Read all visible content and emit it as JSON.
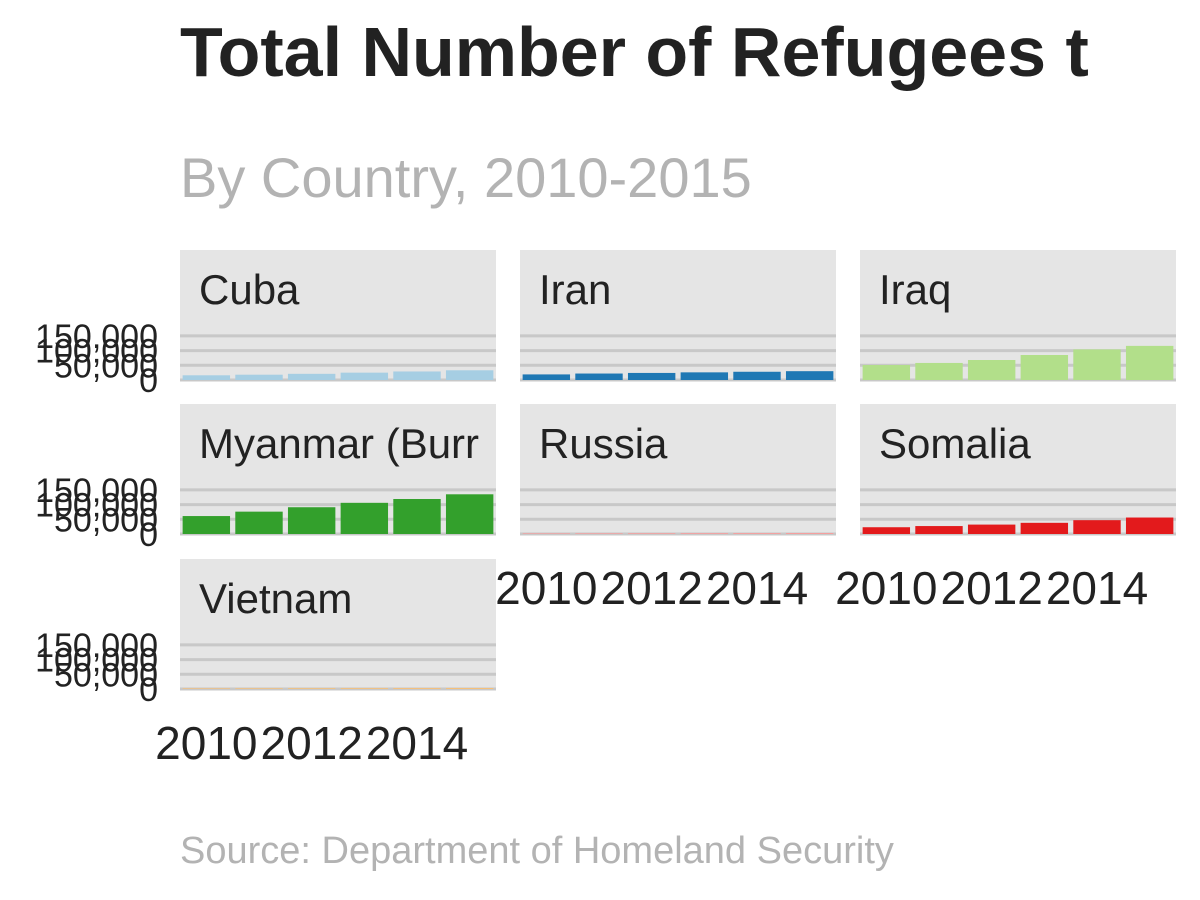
{
  "chart_data": {
    "type": "bar",
    "title": "Total Number of Refugees t",
    "subtitle": "By Country, 2010-2015",
    "source": "Source: Department of Homeland Security",
    "x": [
      2010,
      2011,
      2012,
      2013,
      2014,
      2015
    ],
    "x_ticks": [
      2010,
      2012,
      2014
    ],
    "y_ticks": [
      0,
      50000,
      100000,
      150000
    ],
    "y_tick_labels": [
      "0",
      "50,000",
      "100,000",
      "150,000"
    ],
    "ylim": [
      0,
      170000
    ],
    "grid": true,
    "legend": "none",
    "panels": [
      {
        "name": "Cuba",
        "color": "#a6cee3",
        "values": [
          16000,
          18000,
          21000,
          25000,
          29000,
          33000
        ]
      },
      {
        "name": "Iran",
        "color": "#1f78b4",
        "values": [
          19000,
          22000,
          24000,
          26000,
          28000,
          30000
        ]
      },
      {
        "name": "Iraq",
        "color": "#b2df8a",
        "values": [
          51000,
          58000,
          68000,
          85000,
          104000,
          116000
        ]
      },
      {
        "name": "Myanmar (Burr",
        "color": "#33a02c",
        "values": [
          61000,
          76000,
          91000,
          106000,
          119000,
          135000
        ]
      },
      {
        "name": "Russia",
        "color": "#fb9a99",
        "values": [
          2000,
          2200,
          2400,
          2600,
          2800,
          3000
        ]
      },
      {
        "name": "Somalia",
        "color": "#e31a1c",
        "values": [
          23000,
          27000,
          32000,
          38000,
          47000,
          56000
        ]
      },
      {
        "name": "Vietnam",
        "color": "#fdbf6f",
        "values": [
          2000,
          2200,
          2400,
          2600,
          2800,
          3000
        ]
      }
    ]
  }
}
